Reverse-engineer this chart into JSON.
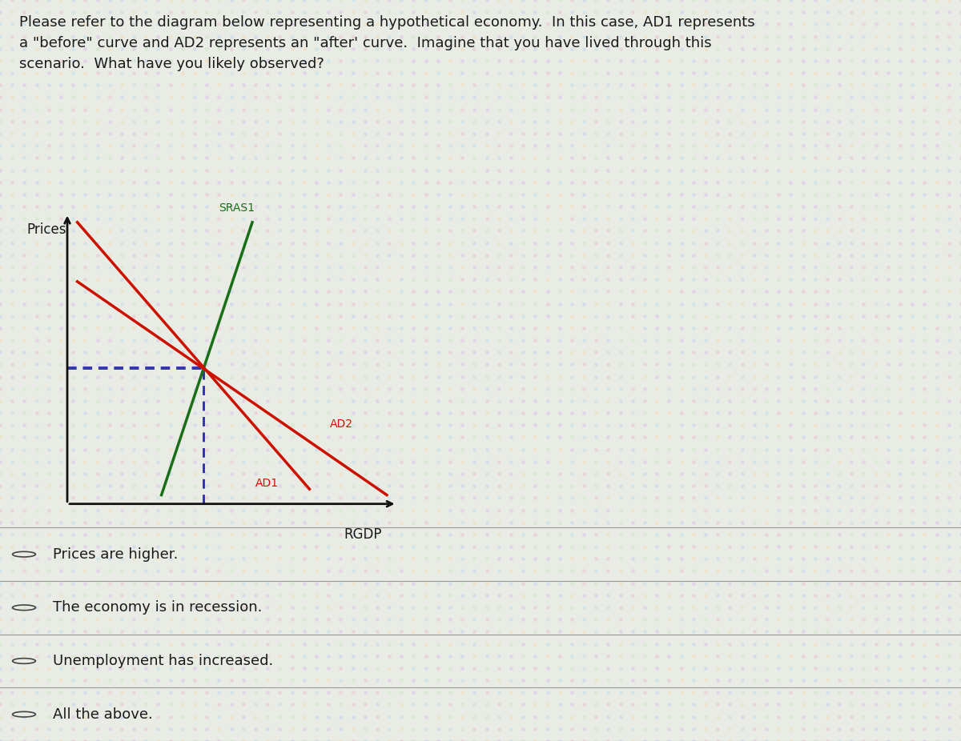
{
  "title_text": "Please refer to the diagram below representing a hypothetical economy.  In this case, AD1 represents\na \"before\" curve and AD2 represents an \"after' curve.  Imagine that you have lived through this\nscenario.  What have you likely observed?",
  "ylabel": "Prices",
  "xlabel": "RGDP",
  "bg_color": "#e8ece4",
  "ad1_color": "#cc1100",
  "ad2_color": "#cc1100",
  "sras_color": "#1a6e1a",
  "axis_color": "#111111",
  "dashed_color": "#3333aa",
  "options": [
    "Prices are higher.",
    "The economy is in recession.",
    "Unemployment has increased.",
    "All the above."
  ],
  "option_font_size": 13,
  "title_font_size": 13
}
